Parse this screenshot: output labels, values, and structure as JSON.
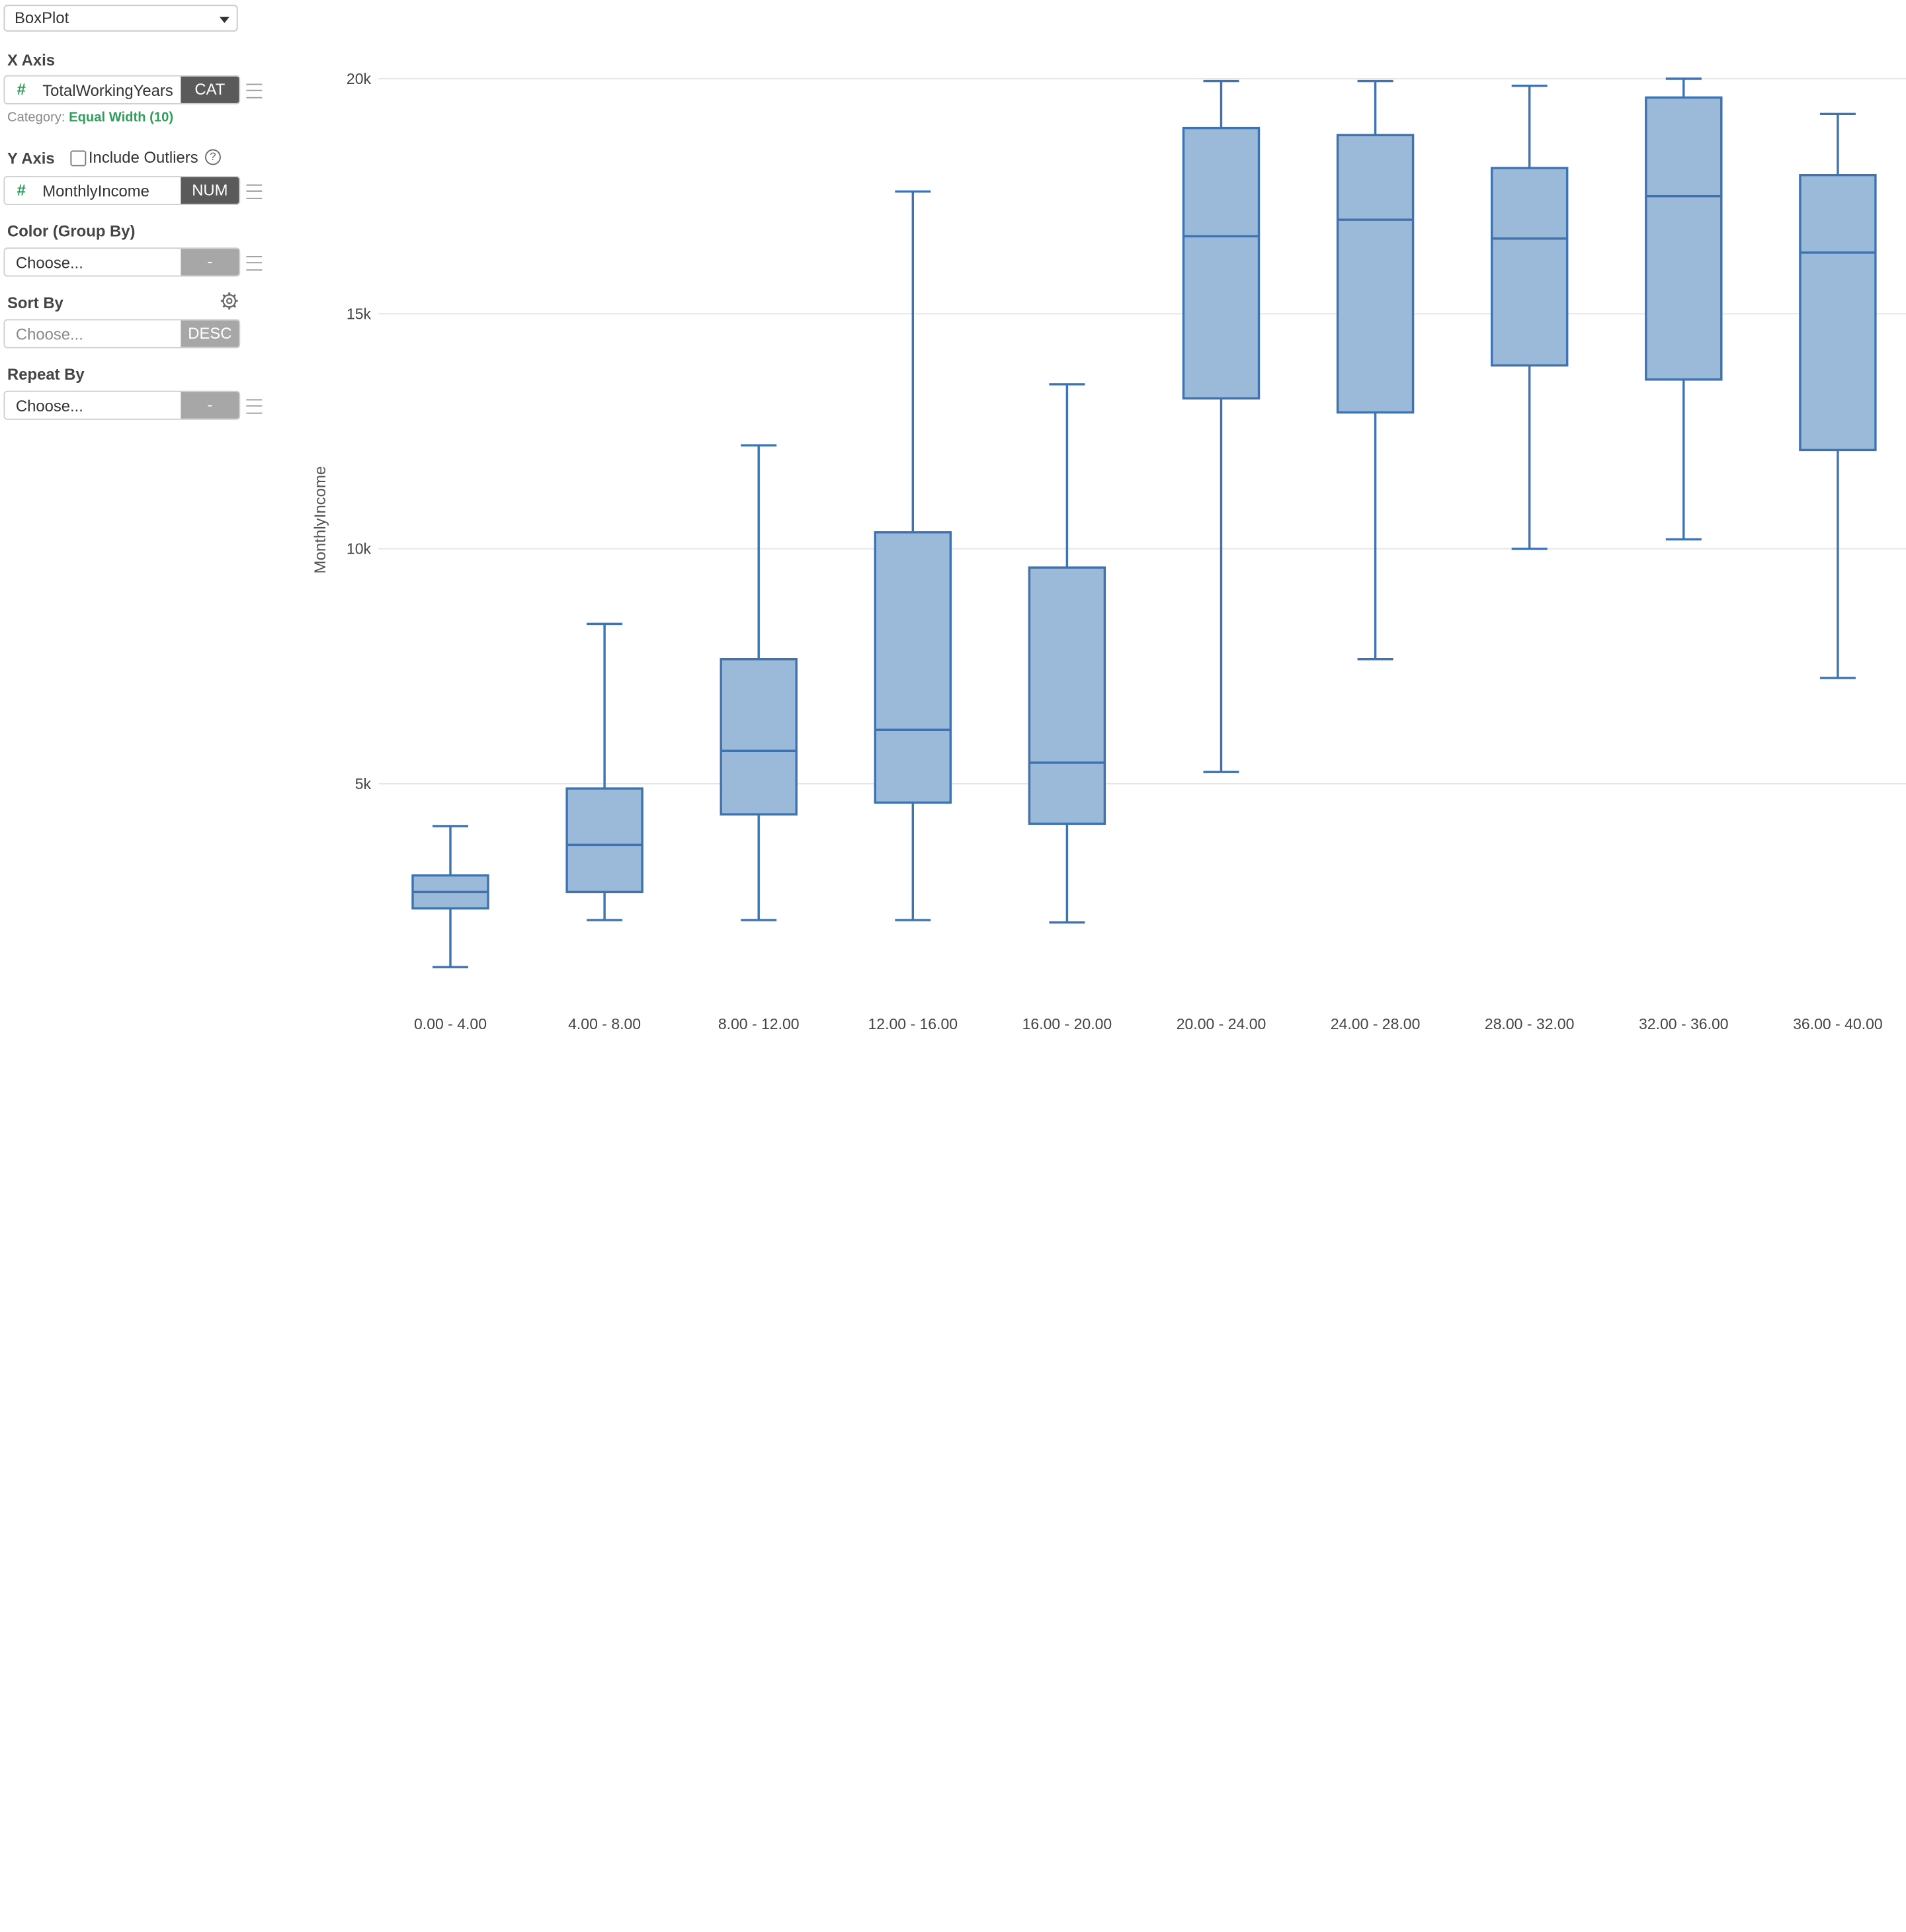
{
  "panel": {
    "chart_type": "BoxPlot",
    "x_axis": {
      "title": "X Axis",
      "field": "TotalWorkingYears",
      "type_tag": "CAT",
      "category_label": "Category:",
      "category_value": "Equal Width (10)"
    },
    "y_axis": {
      "title": "Y Axis",
      "include_outliers_label": "Include Outliers",
      "include_outliers_checked": false,
      "help": "?",
      "field": "MonthlyIncome",
      "type_tag": "NUM"
    },
    "color": {
      "title": "Color (Group By)",
      "placeholder": "Choose...",
      "tag": "-"
    },
    "sort": {
      "title": "Sort By",
      "placeholder": "Choose...",
      "tag": "DESC"
    },
    "repeat": {
      "title": "Repeat By",
      "placeholder": "Choose...",
      "tag": "-"
    },
    "icons": {
      "field_hash": "hash-icon",
      "menu": "hamburger-menu-icon",
      "settings": "gear-icon",
      "dropdown": "chevron-down-icon"
    }
  },
  "colors": {
    "box_fill": "#9bb9d9",
    "box_stroke": "#3e73b0",
    "grid": "#e6e6e6",
    "accent_green": "#2e9e5b",
    "tag_dark": "#5a5a5a",
    "tag_grey": "#a7a7a7"
  },
  "chart_data": {
    "type": "box",
    "title": "",
    "xlabel": "",
    "ylabel": "MonthlyIncome",
    "ylim": [
      0,
      20000
    ],
    "grid": true,
    "yticks": [
      {
        "value": 5000,
        "label": "5k"
      },
      {
        "value": 10000,
        "label": "10k"
      },
      {
        "value": 15000,
        "label": "15k"
      },
      {
        "value": 20000,
        "label": "20k"
      }
    ],
    "categories": [
      "0.00 - 4.00",
      "4.00 - 8.00",
      "8.00 - 12.00",
      "12.00 - 16.00",
      "16.00 - 20.00",
      "20.00 - 24.00",
      "24.00 - 28.00",
      "28.00 - 32.00",
      "32.00 - 36.00",
      "36.00 - 40.00"
    ],
    "boxes": [
      {
        "min": 1100,
        "q1": 2350,
        "median": 2700,
        "q3": 3050,
        "max": 4100
      },
      {
        "min": 2100,
        "q1": 2700,
        "median": 3700,
        "q3": 4900,
        "max": 8400
      },
      {
        "min": 2100,
        "q1": 4350,
        "median": 5700,
        "q3": 7650,
        "max": 12200
      },
      {
        "min": 2100,
        "q1": 4600,
        "median": 6150,
        "q3": 10350,
        "max": 17600
      },
      {
        "min": 2050,
        "q1": 4150,
        "median": 5450,
        "q3": 9600,
        "max": 13500
      },
      {
        "min": 5250,
        "q1": 13200,
        "median": 16650,
        "q3": 18950,
        "max": 19950
      },
      {
        "min": 7650,
        "q1": 12900,
        "median": 17000,
        "q3": 18800,
        "max": 19950
      },
      {
        "min": 10000,
        "q1": 13900,
        "median": 16600,
        "q3": 18100,
        "max": 19850
      },
      {
        "min": 10200,
        "q1": 13600,
        "median": 17500,
        "q3": 19600,
        "max": 20000
      },
      {
        "min": 7250,
        "q1": 12100,
        "median": 16300,
        "q3": 17950,
        "max": 19250
      }
    ]
  }
}
